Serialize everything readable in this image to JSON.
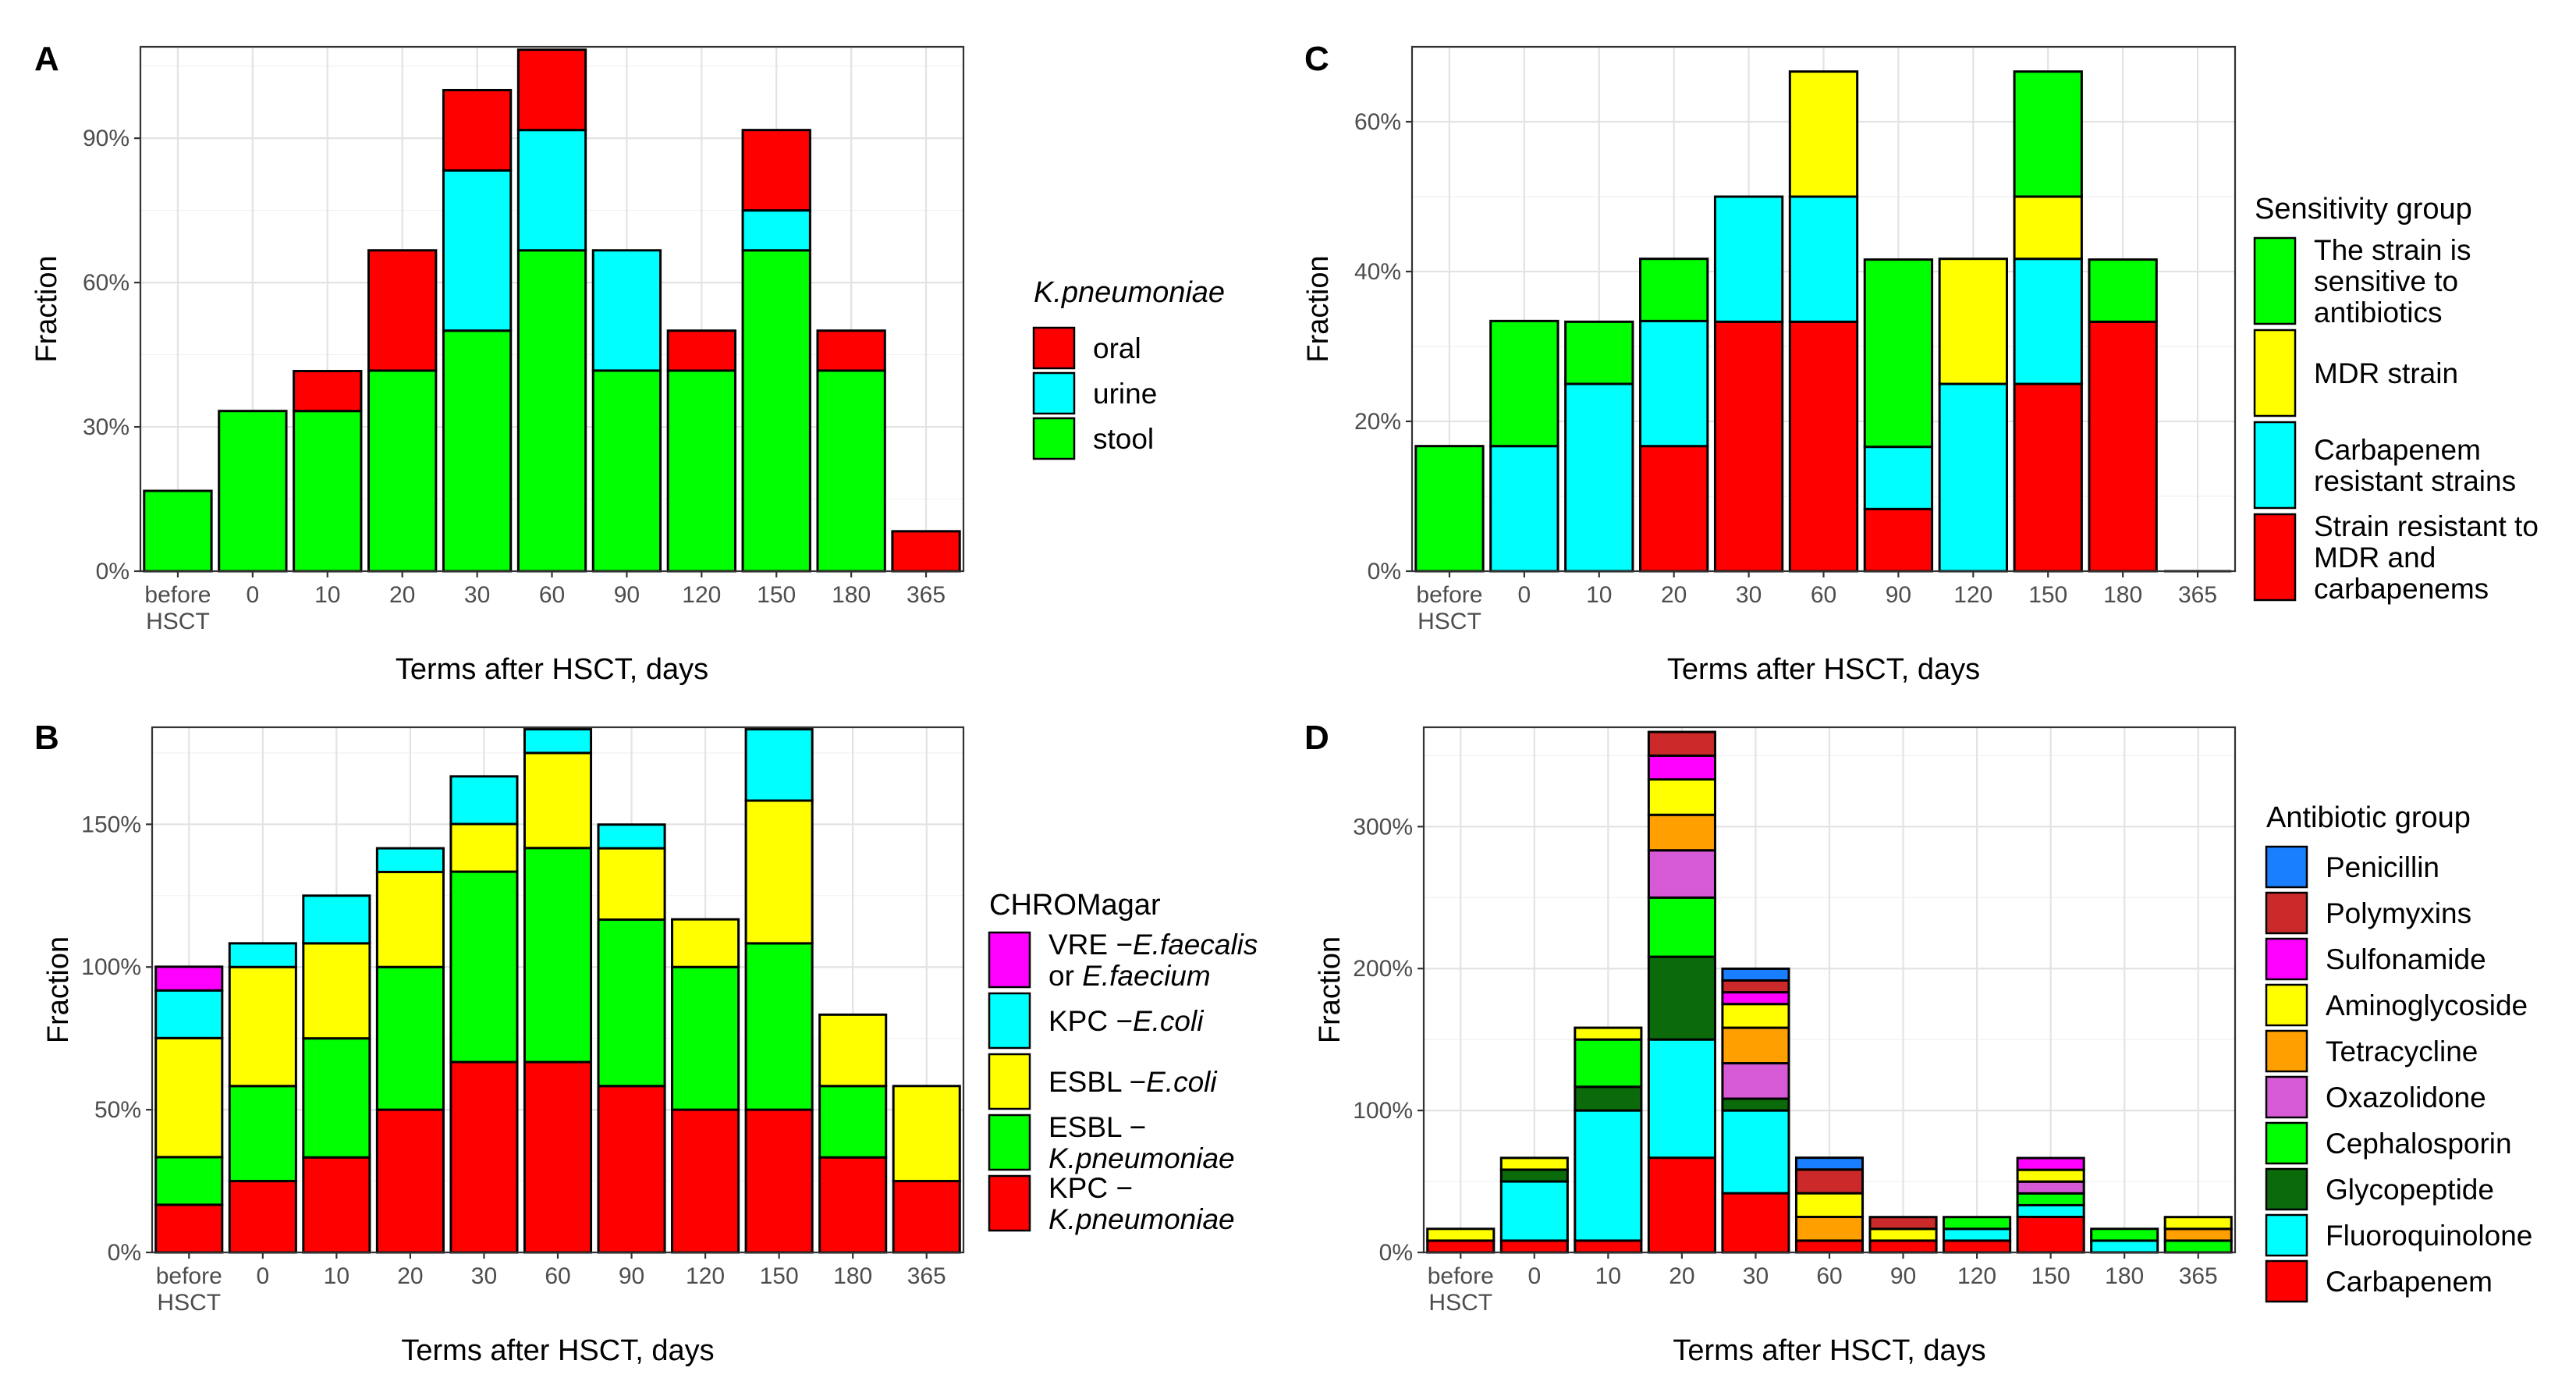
{
  "figure": {
    "x_categories": [
      "before\nHSCT",
      "0",
      "10",
      "20",
      "30",
      "60",
      "90",
      "120",
      "150",
      "180",
      "365"
    ],
    "x_label": "Terms after HSCT, days",
    "y_label": "Fraction"
  },
  "colors": {
    "red": "#ff0000",
    "cyan": "#00ffff",
    "green": "#00ff00",
    "yellow": "#ffff00",
    "magenta": "#ff00ff",
    "blue": "#1a7fff",
    "dark_red": "#cc2a2a",
    "orange": "#ff9f00",
    "orchid": "#d65ad6",
    "dark_green": "#0b6b0b"
  },
  "chart_data": [
    {
      "panel": "A",
      "type": "bar",
      "stacked": true,
      "title": "",
      "xlabel": "Terms after HSCT, days",
      "ylabel": "Fraction",
      "ylim": [
        0,
        1.09
      ],
      "y_ticks": [
        0,
        0.3,
        0.6,
        0.9
      ],
      "y_tick_labels": [
        "0%",
        "30%",
        "60%",
        "90%"
      ],
      "categories": [
        "before\nHSCT",
        "0",
        "10",
        "20",
        "30",
        "60",
        "90",
        "120",
        "150",
        "180",
        "365"
      ],
      "legend_title": "K.pneumoniae",
      "series": [
        {
          "name": "stool",
          "color": "#00ff00",
          "values": [
            0.167,
            0.333,
            0.333,
            0.417,
            0.5,
            0.667,
            0.417,
            0.417,
            0.667,
            0.417,
            0
          ]
        },
        {
          "name": "urine",
          "color": "#00ffff",
          "values": [
            0,
            0,
            0,
            0,
            0.333,
            0.25,
            0.25,
            0,
            0.083,
            0,
            0
          ]
        },
        {
          "name": "oral",
          "color": "#ff0000",
          "values": [
            0,
            0,
            0.083,
            0.25,
            0.167,
            0.167,
            0,
            0.083,
            0.167,
            0.083,
            0.083
          ]
        }
      ]
    },
    {
      "panel": "B",
      "type": "bar",
      "stacked": true,
      "title": "",
      "xlabel": "Terms after HSCT, days",
      "ylabel": "Fraction",
      "ylim": [
        0,
        1.84
      ],
      "y_ticks": [
        0,
        0.5,
        1.0,
        1.5
      ],
      "y_tick_labels": [
        "0%",
        "50%",
        "100%",
        "150%"
      ],
      "categories": [
        "before\nHSCT",
        "0",
        "10",
        "20",
        "30",
        "60",
        "90",
        "120",
        "150",
        "180",
        "365"
      ],
      "legend_title": "CHROMagar",
      "series": [
        {
          "name": "KPC − K.pneumoniae",
          "color": "#ff0000",
          "values": [
            0.167,
            0.25,
            0.333,
            0.5,
            0.667,
            0.667,
            0.583,
            0.5,
            0.5,
            0.333,
            0.25
          ]
        },
        {
          "name": "ESBL − K.pneumoniae",
          "color": "#00ff00",
          "values": [
            0.167,
            0.333,
            0.417,
            0.5,
            0.667,
            0.75,
            0.583,
            0.5,
            0.583,
            0.25,
            0
          ]
        },
        {
          "name": "ESBL −E.coli",
          "color": "#ffff00",
          "values": [
            0.417,
            0.417,
            0.333,
            0.333,
            0.167,
            0.333,
            0.25,
            0.167,
            0.5,
            0.25,
            0.333
          ]
        },
        {
          "name": "KPC −E.coli",
          "color": "#00ffff",
          "values": [
            0.167,
            0.083,
            0.167,
            0.083,
            0.167,
            0.083,
            0.083,
            0,
            0.25,
            0,
            0
          ]
        },
        {
          "name": "VRE −E.faecalis or E.faecium",
          "color": "#ff00ff",
          "values": [
            0.083,
            0,
            0,
            0,
            0,
            0,
            0,
            0,
            0,
            0,
            0
          ]
        }
      ]
    },
    {
      "panel": "C",
      "type": "bar",
      "stacked": true,
      "title": "",
      "xlabel": "Terms after HSCT, days",
      "ylabel": "Fraction",
      "ylim": [
        0,
        0.7
      ],
      "y_ticks": [
        0,
        0.2,
        0.4,
        0.6
      ],
      "y_tick_labels": [
        "0%",
        "20%",
        "40%",
        "60%"
      ],
      "categories": [
        "before\nHSCT",
        "0",
        "10",
        "20",
        "30",
        "60",
        "90",
        "120",
        "150",
        "180",
        "365"
      ],
      "legend_title": "Sensitivity group",
      "series": [
        {
          "name": "Strain resistant to MDR and carbapenems",
          "color": "#ff0000",
          "values": [
            0,
            0,
            0,
            0.167,
            0.333,
            0.333,
            0.083,
            0,
            0.25,
            0.333,
            0
          ]
        },
        {
          "name": "Carbapenem resistant strains",
          "color": "#00ffff",
          "values": [
            0,
            0.167,
            0.25,
            0.167,
            0.167,
            0.167,
            0.083,
            0.25,
            0.167,
            0,
            0
          ]
        },
        {
          "name": "MDR strain",
          "color": "#ffff00",
          "values": [
            0,
            0,
            0,
            0,
            0,
            0.167,
            0,
            0.167,
            0.083,
            0,
            0
          ]
        },
        {
          "name": "The strain is sensitive to antibiotics",
          "color": "#00ff00",
          "values": [
            0.167,
            0.167,
            0.083,
            0.083,
            0,
            0,
            0.25,
            0,
            0.167,
            0.083,
            0
          ]
        }
      ]
    },
    {
      "panel": "D",
      "type": "bar",
      "stacked": true,
      "title": "",
      "xlabel": "Terms after HSCT, days",
      "ylabel": "Fraction",
      "ylim": [
        0,
        3.7
      ],
      "y_ticks": [
        0,
        1,
        2,
        3
      ],
      "y_tick_labels": [
        "0%",
        "100%",
        "200%",
        "300%"
      ],
      "categories": [
        "before\nHSCT",
        "0",
        "10",
        "20",
        "30",
        "60",
        "90",
        "120",
        "150",
        "180",
        "365"
      ],
      "legend_title": "Antibiotic group",
      "series": [
        {
          "name": "Carbapenem",
          "color": "#ff0000",
          "values": [
            0.083,
            0.083,
            0.083,
            0.667,
            0.417,
            0.083,
            0.083,
            0.083,
            0.25,
            0,
            0
          ]
        },
        {
          "name": "Fluoroquinolone",
          "color": "#00ffff",
          "values": [
            0,
            0.417,
            0.917,
            0.833,
            0.583,
            0,
            0,
            0.083,
            0.083,
            0.083,
            0
          ]
        },
        {
          "name": "Glycopeptide",
          "color": "#0b6b0b",
          "values": [
            0,
            0.083,
            0.167,
            0.583,
            0.083,
            0,
            0,
            0,
            0,
            0,
            0
          ]
        },
        {
          "name": "Cephalosporin",
          "color": "#00ff00",
          "values": [
            0,
            0,
            0.333,
            0.417,
            0,
            0,
            0,
            0.083,
            0.083,
            0.083,
            0.083
          ]
        },
        {
          "name": "Oxazolidone",
          "color": "#d65ad6",
          "values": [
            0,
            0,
            0,
            0.333,
            0.25,
            0,
            0,
            0,
            0.083,
            0,
            0
          ]
        },
        {
          "name": "Tetracycline",
          "color": "#ff9f00",
          "values": [
            0,
            0,
            0,
            0.25,
            0.25,
            0.167,
            0,
            0,
            0,
            0,
            0.083
          ]
        },
        {
          "name": "Aminoglycoside",
          "color": "#ffff00",
          "values": [
            0.083,
            0.083,
            0.083,
            0.25,
            0.167,
            0.167,
            0.083,
            0,
            0.083,
            0,
            0.083
          ]
        },
        {
          "name": "Sulfonamide",
          "color": "#ff00ff",
          "values": [
            0,
            0,
            0,
            0.167,
            0.083,
            0,
            0,
            0,
            0.083,
            0,
            0
          ]
        },
        {
          "name": "Polymyxins",
          "color": "#cc2a2a",
          "values": [
            0,
            0,
            0,
            0.167,
            0.083,
            0.167,
            0.083,
            0,
            0,
            0,
            0
          ]
        },
        {
          "name": "Penicillin",
          "color": "#1a7fff",
          "values": [
            0,
            0,
            0,
            0,
            0.083,
            0.083,
            0,
            0,
            0,
            0,
            0
          ]
        }
      ]
    }
  ]
}
